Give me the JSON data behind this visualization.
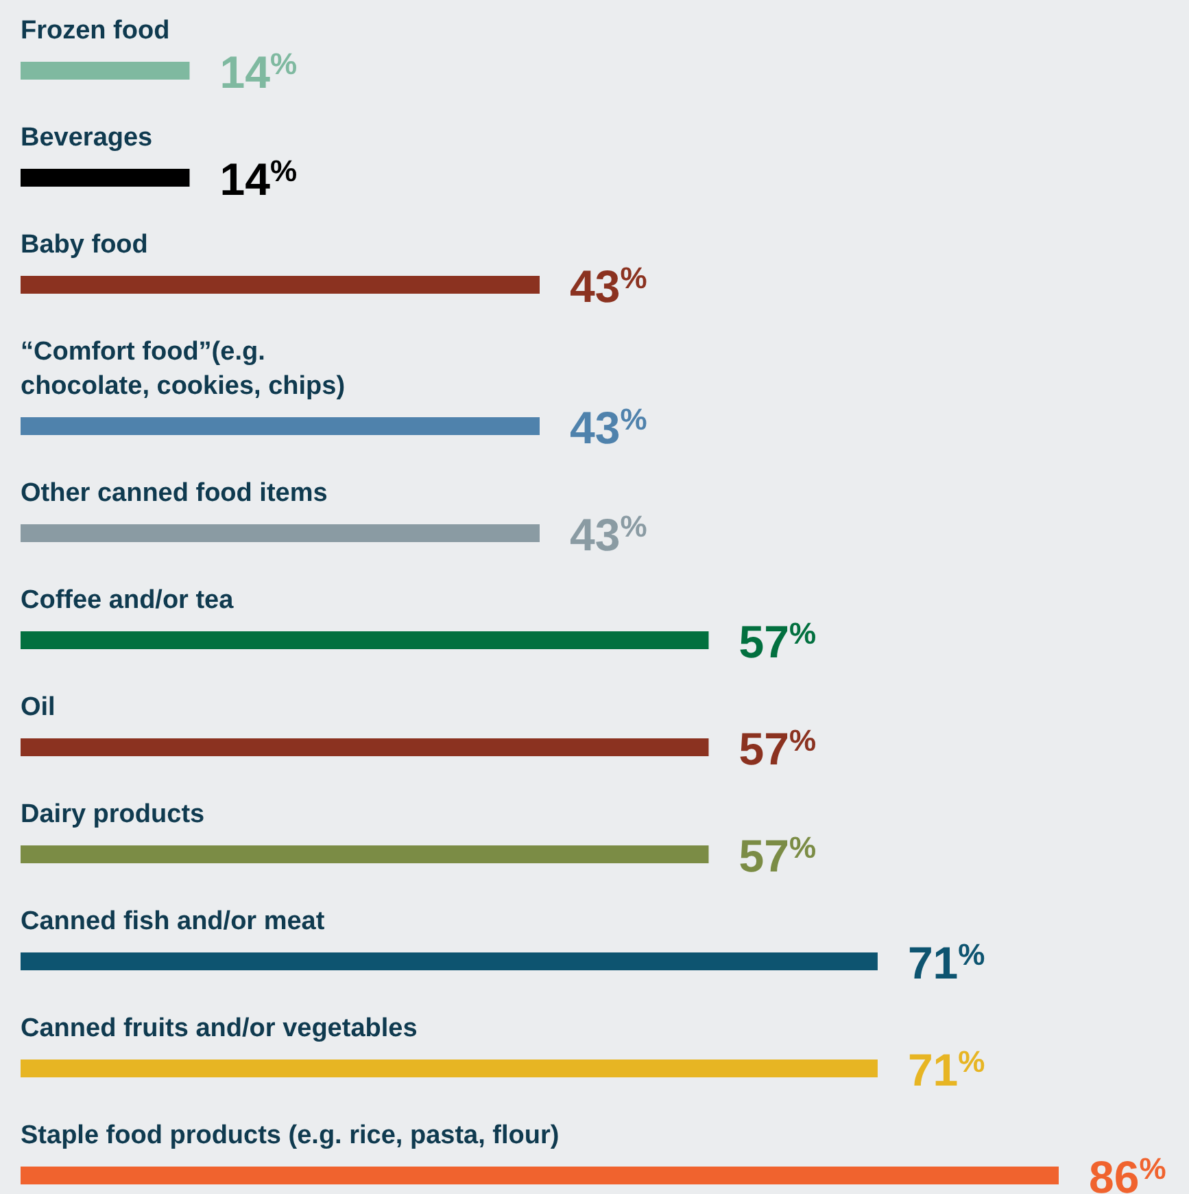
{
  "chart_data": {
    "type": "bar",
    "orientation": "horizontal",
    "categories": [
      "Frozen food",
      "Beverages",
      "Baby food",
      "“Comfort food”(e.g.\nchocolate, cookies, chips)",
      "Other canned food items",
      "Coffee and/or tea",
      "Oil",
      "Dairy products",
      "Canned fish and/or meat",
      "Canned fruits and/or vegetables",
      "Staple food products (e.g. rice, pasta, flour)"
    ],
    "values": [
      14,
      14,
      43,
      43,
      43,
      57,
      57,
      57,
      71,
      71,
      86
    ],
    "colors": [
      "#7fb9a0",
      "#000000",
      "#8b3220",
      "#4f82ac",
      "#8a9ba3",
      "#02703f",
      "#8b3220",
      "#7b8c45",
      "#0d5470",
      "#e7b523",
      "#f0632e"
    ],
    "value_labels": [
      "14$^{%}$",
      "14$^{%}$",
      "43$^{%}$",
      "43$^{%}$",
      "43$^{%}$",
      "57$^{%}$",
      "57$^{%}$",
      "57$^{%}$",
      "71$^{%}$",
      "71$^{%}$",
      "86$^{%}$"
    ]
  }
}
